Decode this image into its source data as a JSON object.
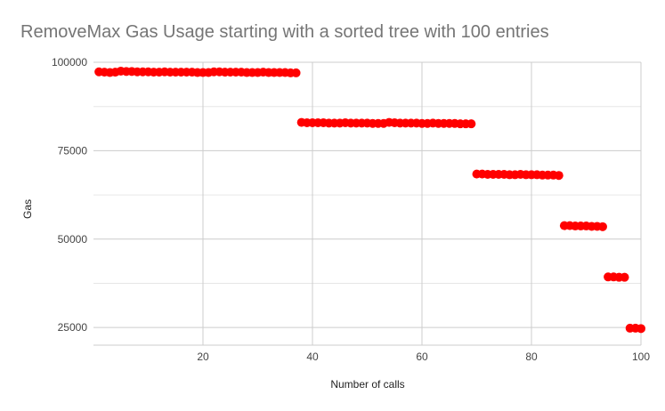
{
  "chart_data": {
    "type": "scatter",
    "title": "RemoveMax Gas Usage starting with a sorted tree with 100 entries",
    "xlabel": "Number of calls",
    "ylabel": "Gas",
    "xlim": [
      0,
      100
    ],
    "ylim": [
      20000,
      100000
    ],
    "x_ticks": [
      20,
      40,
      60,
      80,
      100
    ],
    "y_ticks": [
      25000,
      50000,
      75000,
      100000
    ],
    "grid": true,
    "legend": "none",
    "marker_color": "#ff0000",
    "gridline_color": "#cccccc",
    "series": [
      {
        "x": [
          1,
          2,
          3,
          4,
          5,
          6,
          7,
          8,
          9,
          10,
          11,
          12,
          13,
          14,
          15,
          16,
          17,
          18,
          19,
          20,
          21,
          22,
          23,
          24,
          25,
          26,
          27,
          28,
          29,
          30,
          31,
          32,
          33,
          34,
          35,
          36,
          37,
          38,
          39,
          40,
          41,
          42,
          43,
          44,
          45,
          46,
          47,
          48,
          49,
          50,
          51,
          52,
          53,
          54,
          55,
          56,
          57,
          58,
          59,
          60,
          61,
          62,
          63,
          64,
          65,
          66,
          67,
          68,
          69,
          70,
          71,
          72,
          73,
          74,
          75,
          76,
          77,
          78,
          79,
          80,
          81,
          82,
          83,
          84,
          85,
          86,
          87,
          88,
          89,
          90,
          91,
          92,
          93,
          94,
          95,
          96,
          97,
          98,
          99,
          100
        ],
        "y": [
          97300,
          97200,
          97100,
          97200,
          97500,
          97400,
          97400,
          97300,
          97300,
          97300,
          97200,
          97200,
          97300,
          97200,
          97200,
          97200,
          97200,
          97200,
          97100,
          97100,
          97100,
          97300,
          97300,
          97200,
          97200,
          97200,
          97200,
          97100,
          97100,
          97100,
          97200,
          97100,
          97100,
          97100,
          97100,
          97000,
          97000,
          83000,
          82900,
          82900,
          82900,
          82900,
          82800,
          82800,
          82800,
          82900,
          82800,
          82800,
          82800,
          82800,
          82700,
          82700,
          82700,
          83000,
          82900,
          82800,
          82800,
          82800,
          82800,
          82700,
          82700,
          82800,
          82700,
          82700,
          82700,
          82700,
          82600,
          82600,
          82600,
          68400,
          68400,
          68300,
          68300,
          68300,
          68300,
          68200,
          68200,
          68300,
          68200,
          68200,
          68200,
          68100,
          68100,
          68100,
          68000,
          53800,
          53800,
          53700,
          53700,
          53700,
          53600,
          53600,
          53500,
          39300,
          39300,
          39200,
          39200,
          24800,
          24800,
          24700
        ]
      }
    ]
  }
}
